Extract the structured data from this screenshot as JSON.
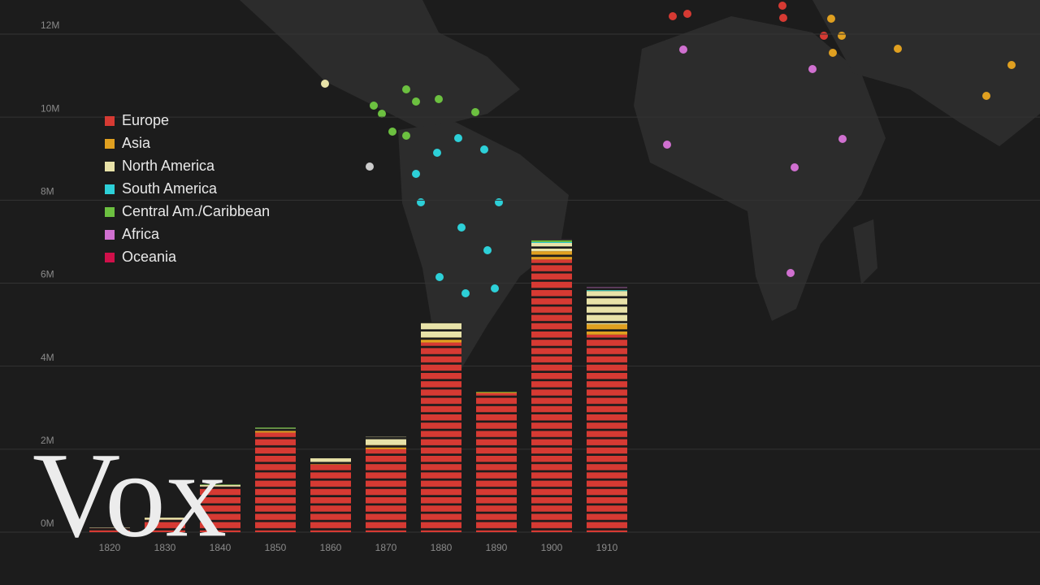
{
  "chart_data": {
    "type": "stacked_bar",
    "categories": [
      "1820",
      "1830",
      "1840",
      "1850",
      "1860",
      "1870",
      "1880",
      "1890",
      "1900",
      "1910"
    ],
    "series": [
      {
        "name": "Europe",
        "color": "#d63a33",
        "values": [
          0.1,
          0.3,
          1.1,
          2.4,
          1.63,
          2.0,
          4.57,
          3.35,
          6.57,
          4.76
        ]
      },
      {
        "name": "Asia",
        "color": "#e0a020",
        "values": [
          0,
          0,
          0,
          0.04,
          0.02,
          0.1,
          0.12,
          0.02,
          0.2,
          0.25
        ]
      },
      {
        "name": "North America",
        "color": "#e8e2a8",
        "values": [
          0.01,
          0.05,
          0.04,
          0.06,
          0.13,
          0.2,
          0.35,
          0,
          0.2,
          0.8
        ]
      },
      {
        "name": "South America",
        "color": "#2dd0d8",
        "values": [
          0,
          0,
          0,
          0,
          0,
          0,
          0,
          0,
          0.02,
          0.02
        ]
      },
      {
        "name": "Central Am./Caribbean",
        "color": "#6cc040",
        "values": [
          0,
          0,
          0.01,
          0.02,
          0,
          0,
          0.02,
          0.01,
          0.05,
          0.05
        ]
      },
      {
        "name": "Africa",
        "color": "#d070d0",
        "values": [
          0,
          0,
          0,
          0,
          0,
          0,
          0,
          0,
          0.02,
          0.02
        ]
      },
      {
        "name": "Oceania",
        "color": "#d0104a",
        "values": [
          0,
          0,
          0,
          0,
          0,
          0,
          0,
          0,
          0,
          0
        ]
      }
    ],
    "ylim": [
      0,
      12
    ],
    "yticks": [
      {
        "value": 0,
        "label": "0M"
      },
      {
        "value": 2,
        "label": "2M"
      },
      {
        "value": 4,
        "label": "4M"
      },
      {
        "value": 6,
        "label": "6M"
      },
      {
        "value": 8,
        "label": "8M"
      },
      {
        "value": 10,
        "label": "10M"
      },
      {
        "value": 12,
        "label": "12M"
      }
    ],
    "grid": true,
    "legend": "upper left",
    "watermark": "Vox"
  }
}
